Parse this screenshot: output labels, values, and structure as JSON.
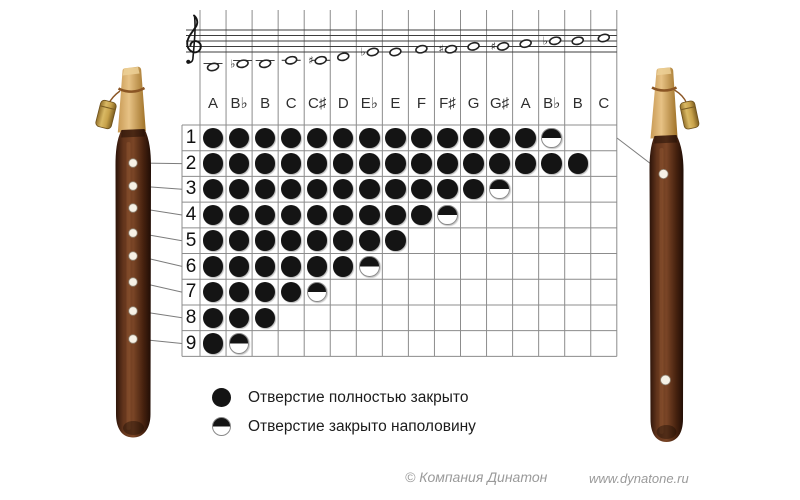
{
  "staff": {
    "notes": [
      {
        "label": "A",
        "accidental": "",
        "y": 67.0,
        "ledger_y": 63.5
      },
      {
        "label": "B",
        "accidental": "♭",
        "y": 63.8,
        "ledger_y": 60.5
      },
      {
        "label": "B",
        "accidental": "",
        "y": 63.8,
        "ledger_y": 60.5
      },
      {
        "label": "C",
        "accidental": "",
        "y": 60.3,
        "ledger_y": 60.3
      },
      {
        "label": "C",
        "accidental": "♯",
        "y": 60.3,
        "ledger_y": 60.3
      },
      {
        "label": "D",
        "accidental": "",
        "y": 56.8,
        "ledger_y": null
      },
      {
        "label": "E",
        "accidental": "♭",
        "y": 52.0,
        "ledger_y": null
      },
      {
        "label": "E",
        "accidental": "",
        "y": 52.0,
        "ledger_y": null
      },
      {
        "label": "F",
        "accidental": "",
        "y": 49.2,
        "ledger_y": null
      },
      {
        "label": "F",
        "accidental": "♯",
        "y": 49.2,
        "ledger_y": null
      },
      {
        "label": "G",
        "accidental": "",
        "y": 46.4,
        "ledger_y": null
      },
      {
        "label": "G",
        "accidental": "♯",
        "y": 46.4,
        "ledger_y": null
      },
      {
        "label": "A",
        "accidental": "",
        "y": 43.6,
        "ledger_y": null
      },
      {
        "label": "B",
        "accidental": "♭",
        "y": 40.8,
        "ledger_y": null
      },
      {
        "label": "B",
        "accidental": "",
        "y": 40.8,
        "ledger_y": null
      },
      {
        "label": "C",
        "accidental": "",
        "y": 38.0,
        "ledger_y": null
      }
    ]
  },
  "chart": {
    "type": "fingering-table",
    "columns": [
      "A",
      "B♭",
      "B",
      "C",
      "C♯",
      "D",
      "E♭",
      "E",
      "F",
      "F♯",
      "G",
      "G♯",
      "A",
      "B♭",
      "B",
      "C"
    ],
    "cell_legend": {
      "2": "closed",
      "1": "half-closed",
      "0": "open"
    },
    "rows": [
      {
        "num": "1",
        "cells": [
          2,
          2,
          2,
          2,
          2,
          2,
          2,
          2,
          2,
          2,
          2,
          2,
          2,
          1,
          0,
          0
        ]
      },
      {
        "num": "2",
        "cells": [
          2,
          2,
          2,
          2,
          2,
          2,
          2,
          2,
          2,
          2,
          2,
          2,
          2,
          2,
          2,
          0
        ]
      },
      {
        "num": "3",
        "cells": [
          2,
          2,
          2,
          2,
          2,
          2,
          2,
          2,
          2,
          2,
          2,
          1,
          0,
          0,
          0,
          0
        ]
      },
      {
        "num": "4",
        "cells": [
          2,
          2,
          2,
          2,
          2,
          2,
          2,
          2,
          2,
          1,
          0,
          0,
          0,
          0,
          0,
          0
        ]
      },
      {
        "num": "5",
        "cells": [
          2,
          2,
          2,
          2,
          2,
          2,
          2,
          2,
          0,
          0,
          0,
          0,
          0,
          0,
          0,
          0
        ]
      },
      {
        "num": "6",
        "cells": [
          2,
          2,
          2,
          2,
          2,
          2,
          1,
          0,
          0,
          0,
          0,
          0,
          0,
          0,
          0,
          0
        ]
      },
      {
        "num": "7",
        "cells": [
          2,
          2,
          2,
          2,
          1,
          0,
          0,
          0,
          0,
          0,
          0,
          0,
          0,
          0,
          0,
          0
        ]
      },
      {
        "num": "8",
        "cells": [
          2,
          2,
          2,
          0,
          0,
          0,
          0,
          0,
          0,
          0,
          0,
          0,
          0,
          0,
          0,
          0
        ]
      },
      {
        "num": "9",
        "cells": [
          2,
          1,
          0,
          0,
          0,
          0,
          0,
          0,
          0,
          0,
          0,
          0,
          0,
          0,
          0,
          0
        ]
      }
    ]
  },
  "legend": {
    "items": [
      {
        "type": "full",
        "label": "Отверстие полностью закрыто"
      },
      {
        "type": "half",
        "label": "Отверстие закрыто наполовину"
      }
    ]
  },
  "footer": {
    "copyright": "© Компания Динатон",
    "website": "www.dynatone.ru"
  }
}
